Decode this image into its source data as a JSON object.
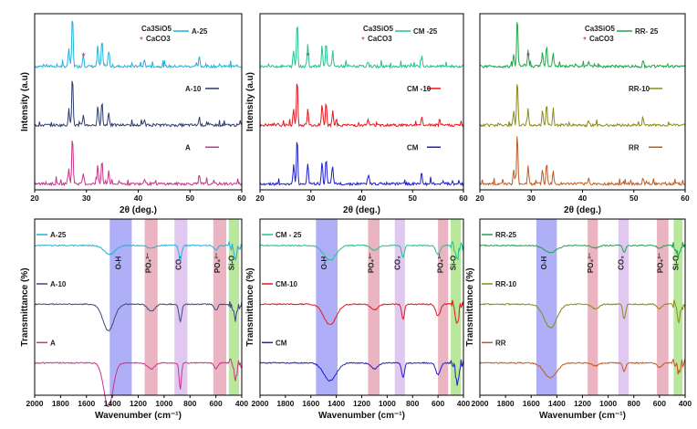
{
  "chart_data": [
    {
      "type": "line",
      "title": "",
      "xlabel": "2θ (deg.)",
      "ylabel": "Intensity (a.u)",
      "xlim": [
        20,
        60
      ],
      "xticks": [
        "20",
        "30",
        "40",
        "50",
        "60"
      ],
      "legend": {
        "label1": "Ca3SiO5",
        "label2": "CaCO3",
        "placement": "top-right"
      },
      "series": [
        {
          "name": "A-25",
          "color": "#24b1dc",
          "offset": 2,
          "peaks": [
            [
              26.6,
              0.35
            ],
            [
              27.3,
              1.0
            ],
            [
              29.4,
              0.25
            ],
            [
              32.2,
              0.4
            ],
            [
              33.0,
              0.5
            ],
            [
              34.3,
              0.3
            ],
            [
              41.2,
              0.12
            ],
            [
              51.8,
              0.18
            ]
          ]
        },
        {
          "name": "A-10",
          "color": "#2e3a6b",
          "offset": 1,
          "peaks": [
            [
              26.6,
              0.3
            ],
            [
              27.3,
              0.95
            ],
            [
              29.4,
              0.2
            ],
            [
              32.2,
              0.35
            ],
            [
              33.0,
              0.45
            ],
            [
              34.3,
              0.25
            ],
            [
              41.2,
              0.1
            ],
            [
              51.8,
              0.15
            ]
          ]
        },
        {
          "name": "A",
          "color": "#c8348a",
          "offset": 0,
          "peaks": [
            [
              26.6,
              0.3
            ],
            [
              27.3,
              0.95
            ],
            [
              29.4,
              0.2
            ],
            [
              32.2,
              0.35
            ],
            [
              33.0,
              0.45
            ],
            [
              34.3,
              0.25
            ],
            [
              41.2,
              0.1
            ],
            [
              51.8,
              0.15
            ]
          ]
        }
      ],
      "annotation": {
        "symbol": "*",
        "x": 29.4,
        "series": "A-25"
      }
    },
    {
      "type": "line",
      "title": "",
      "xlabel": "2θ (deg.)",
      "ylabel": "Intensity (a.u)",
      "xlim": [
        20,
        60
      ],
      "xticks": [
        "20",
        "30",
        "40",
        "50",
        "60"
      ],
      "legend": {
        "label1": "Ca3SiO5",
        "label2": "CaCO3",
        "placement": "top-right"
      },
      "series": [
        {
          "name": "CM -25",
          "color": "#22c48a",
          "offset": 2,
          "peaks": [
            [
              26.6,
              0.3
            ],
            [
              27.3,
              0.85
            ],
            [
              29.4,
              0.45
            ],
            [
              32.2,
              0.4
            ],
            [
              33.0,
              0.45
            ],
            [
              34.3,
              0.3
            ],
            [
              41.2,
              0.1
            ],
            [
              51.8,
              0.2
            ]
          ]
        },
        {
          "name": "CM -10",
          "color": "#e8151b",
          "offset": 1,
          "peaks": [
            [
              26.6,
              0.3
            ],
            [
              27.3,
              0.9
            ],
            [
              29.4,
              0.3
            ],
            [
              32.2,
              0.4
            ],
            [
              33.0,
              0.45
            ],
            [
              34.3,
              0.3
            ],
            [
              41.2,
              0.12
            ],
            [
              51.8,
              0.15
            ]
          ]
        },
        {
          "name": "CM",
          "color": "#1e1ed0",
          "offset": 0,
          "peaks": [
            [
              26.6,
              0.35
            ],
            [
              27.3,
              0.9
            ],
            [
              29.4,
              0.4
            ],
            [
              32.2,
              0.45
            ],
            [
              33.0,
              0.5
            ],
            [
              34.3,
              0.3
            ],
            [
              41.2,
              0.12
            ],
            [
              51.8,
              0.2
            ]
          ]
        }
      ],
      "annotation": {
        "symbol": "*",
        "x": 29.4,
        "series": "CM -25"
      }
    },
    {
      "type": "line",
      "title": "",
      "xlabel": "2θ (deg.)",
      "ylabel": "",
      "xlim": [
        20,
        60
      ],
      "xticks": [
        "20",
        "30",
        "40",
        "50",
        "60"
      ],
      "legend": {
        "label1": "Ca3SiO5",
        "label2": "CaCO3",
        "placement": "top-right"
      },
      "series": [
        {
          "name": "RR- 25",
          "color": "#1ea64a",
          "offset": 2,
          "peaks": [
            [
              26.6,
              0.25
            ],
            [
              27.3,
              0.95
            ],
            [
              29.4,
              0.3
            ],
            [
              32.2,
              0.3
            ],
            [
              33.0,
              0.4
            ],
            [
              34.3,
              0.25
            ],
            [
              41.2,
              0.1
            ],
            [
              51.8,
              0.12
            ]
          ]
        },
        {
          "name": "RR-10",
          "color": "#8a8a14",
          "offset": 1,
          "peaks": [
            [
              26.6,
              0.25
            ],
            [
              27.3,
              0.9
            ],
            [
              29.4,
              0.3
            ],
            [
              32.2,
              0.3
            ],
            [
              33.0,
              0.4
            ],
            [
              34.3,
              0.25
            ],
            [
              41.2,
              0.1
            ],
            [
              51.8,
              0.12
            ]
          ]
        },
        {
          "name": "RR",
          "color": "#c05a1e",
          "offset": 0,
          "peaks": [
            [
              26.6,
              0.25
            ],
            [
              27.3,
              0.9
            ],
            [
              29.4,
              0.35
            ],
            [
              32.2,
              0.3
            ],
            [
              33.0,
              0.4
            ],
            [
              34.3,
              0.25
            ],
            [
              41.2,
              0.1
            ],
            [
              51.8,
              0.12
            ]
          ]
        }
      ],
      "annotation": {
        "symbol": "*",
        "x": 29.4,
        "series": "RR- 25"
      }
    },
    {
      "type": "line",
      "title": "",
      "xlabel": "Wavenumber (cm⁻¹)",
      "ylabel": "Transmittance (%)",
      "xlim": [
        2000,
        400
      ],
      "xticks": [
        "2000",
        "1800",
        "1600",
        "1400",
        "1200",
        "1000",
        "800",
        "600",
        "400"
      ],
      "bands": [
        {
          "label": "O-H",
          "from": 1420,
          "to": 1250,
          "color": "#6e6ef0"
        },
        {
          "label": "PO₄³⁻",
          "from": 1150,
          "to": 1050,
          "color": "#d9778f"
        },
        {
          "label": "CO₃",
          "from": 920,
          "to": 820,
          "color": "#c79be6"
        },
        {
          "label": "PO₄³⁻",
          "from": 620,
          "to": 520,
          "color": "#d9778f"
        },
        {
          "label": "Si-O",
          "from": 500,
          "to": 420,
          "color": "#7fd54a"
        }
      ],
      "series": [
        {
          "name": "A-25",
          "color": "#24b1dc",
          "offset": 2,
          "dips": [
            [
              1420,
              0.15,
              60
            ],
            [
              1100,
              0.05,
              40
            ],
            [
              875,
              0.25,
              15
            ],
            [
              600,
              0.08,
              20
            ],
            [
              450,
              0.25,
              15
            ]
          ]
        },
        {
          "name": "A-10",
          "color": "#3d4a7a",
          "offset": 1,
          "dips": [
            [
              1430,
              0.45,
              60
            ],
            [
              1100,
              0.12,
              40
            ],
            [
              875,
              0.3,
              15
            ],
            [
              600,
              0.1,
              20
            ],
            [
              450,
              0.3,
              15
            ]
          ]
        },
        {
          "name": "A",
          "color": "#c8348a",
          "offset": 0,
          "dips": [
            [
              1430,
              0.75,
              50
            ],
            [
              1100,
              0.1,
              40
            ],
            [
              875,
              0.45,
              12
            ],
            [
              600,
              0.1,
              20
            ],
            [
              450,
              0.3,
              15
            ]
          ]
        }
      ]
    },
    {
      "type": "line",
      "title": "",
      "xlabel": "Wavenumber (cm⁻¹)",
      "ylabel": "Transmittance (%)",
      "xlim": [
        2000,
        400
      ],
      "xticks": [
        "2000",
        "1800",
        "1600",
        "1400",
        "1200",
        "1000",
        "800",
        "600",
        "400"
      ],
      "bands": [
        {
          "label": "O-H",
          "from": 1560,
          "to": 1390,
          "color": "#6e6ef0"
        },
        {
          "label": "PO₄³⁻",
          "from": 1150,
          "to": 1060,
          "color": "#d9778f"
        },
        {
          "label": "CO₃",
          "from": 940,
          "to": 860,
          "color": "#c79be6"
        },
        {
          "label": "PO₄³⁻",
          "from": 600,
          "to": 520,
          "color": "#d9778f"
        },
        {
          "label": "Si-O",
          "from": 500,
          "to": 420,
          "color": "#7fd54a"
        }
      ],
      "series": [
        {
          "name": "CM - 25",
          "color": "#22c48a",
          "offset": 2,
          "dips": [
            [
              1450,
              0.25,
              70
            ],
            [
              1100,
              0.08,
              40
            ],
            [
              875,
              0.2,
              15
            ],
            [
              600,
              0.15,
              25
            ],
            [
              450,
              0.25,
              15
            ]
          ]
        },
        {
          "name": "CM-10",
          "color": "#e8151b",
          "offset": 1,
          "dips": [
            [
              1450,
              0.35,
              70
            ],
            [
              1100,
              0.1,
              40
            ],
            [
              875,
              0.25,
              15
            ],
            [
              600,
              0.2,
              25
            ],
            [
              450,
              0.35,
              15
            ]
          ]
        },
        {
          "name": "CM",
          "color": "#1e1ed0",
          "offset": 0,
          "dips": [
            [
              1450,
              0.3,
              70
            ],
            [
              1100,
              0.1,
              40
            ],
            [
              875,
              0.25,
              15
            ],
            [
              600,
              0.2,
              25
            ],
            [
              450,
              0.4,
              15
            ]
          ]
        }
      ]
    },
    {
      "type": "line",
      "title": "",
      "xlabel": "Wavenumber (cm⁻¹)",
      "ylabel": "Transmittance (%)",
      "xlim": [
        2000,
        400
      ],
      "xticks": [
        "2000",
        "1800",
        "1600",
        "1400",
        "1200",
        "1000",
        "800",
        "600",
        "400"
      ],
      "bands": [
        {
          "label": "O-H",
          "from": 1560,
          "to": 1400,
          "color": "#6e6ef0"
        },
        {
          "label": "PO₄³⁻",
          "from": 1160,
          "to": 1080,
          "color": "#d9778f"
        },
        {
          "label": "CO₃",
          "from": 920,
          "to": 840,
          "color": "#c79be6"
        },
        {
          "label": "PO₄³⁻",
          "from": 620,
          "to": 530,
          "color": "#d9778f"
        },
        {
          "label": "Si-O",
          "from": 490,
          "to": 420,
          "color": "#7fd54a"
        }
      ],
      "series": [
        {
          "name": "RR-25",
          "color": "#1ea64a",
          "offset": 2,
          "dips": [
            [
              1450,
              0.12,
              70
            ],
            [
              1100,
              0.04,
              40
            ],
            [
              875,
              0.12,
              15
            ],
            [
              600,
              0.05,
              25
            ],
            [
              450,
              0.2,
              15
            ]
          ]
        },
        {
          "name": "RR-10",
          "color": "#8a8a14",
          "offset": 1,
          "dips": [
            [
              1450,
              0.4,
              70
            ],
            [
              1100,
              0.08,
              40
            ],
            [
              875,
              0.25,
              15
            ],
            [
              600,
              0.08,
              25
            ],
            [
              450,
              0.3,
              15
            ]
          ]
        },
        {
          "name": "RR",
          "color": "#c05a1e",
          "offset": 0,
          "dips": [
            [
              1450,
              0.25,
              70
            ],
            [
              1100,
              0.05,
              40
            ],
            [
              875,
              0.15,
              15
            ],
            [
              600,
              0.08,
              25
            ],
            [
              450,
              0.2,
              15
            ]
          ]
        }
      ]
    }
  ]
}
